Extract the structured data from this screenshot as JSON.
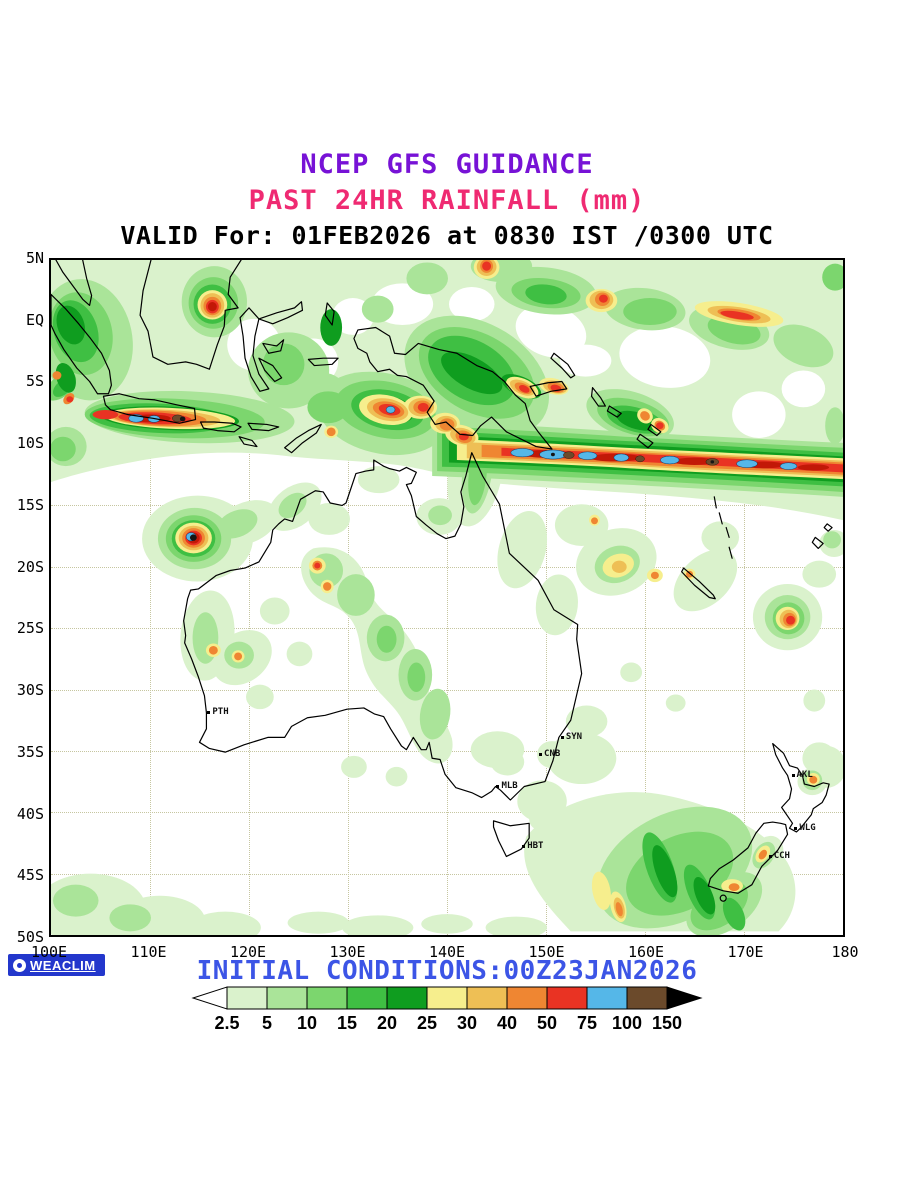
{
  "header": {
    "line1": "NCEP GFS GUIDANCE",
    "line2": "PAST 24HR RAINFALL (mm)",
    "line3": "VALID For: 01FEB2026 at 0830 IST /0300 UTC"
  },
  "axes": {
    "lat": [
      "5N",
      "EQ",
      "5S",
      "10S",
      "15S",
      "20S",
      "25S",
      "30S",
      "35S",
      "40S",
      "45S",
      "50S"
    ],
    "lon": [
      "100E",
      "110E",
      "120E",
      "130E",
      "140E",
      "150E",
      "160E",
      "170E",
      "180"
    ]
  },
  "cities": [
    {
      "code": "PTH",
      "lon": 116.0,
      "lat": -31.7
    },
    {
      "code": "SYN",
      "lon": 151.7,
      "lat": -33.7
    },
    {
      "code": "CNB",
      "lon": 149.5,
      "lat": -35.1
    },
    {
      "code": "MLB",
      "lon": 145.2,
      "lat": -37.7
    },
    {
      "code": "HBT",
      "lon": 147.8,
      "lat": -42.6
    },
    {
      "code": "AKL",
      "lon": 175.0,
      "lat": -36.8
    },
    {
      "code": "WLG",
      "lon": 175.3,
      "lat": -41.1
    },
    {
      "code": "CCH",
      "lon": 172.7,
      "lat": -43.4
    }
  ],
  "footer": {
    "initial_conditions": "INITIAL CONDITIONS:00Z23JAN2026",
    "brand": "WEACLIM"
  },
  "legend": {
    "values": [
      "2.5",
      "5",
      "10",
      "15",
      "20",
      "25",
      "30",
      "40",
      "50",
      "75",
      "100",
      "150"
    ],
    "colors": [
      "#daf2cc",
      "#aae499",
      "#7cd66e",
      "#3fbf43",
      "#0f9d1f",
      "#f6ee8d",
      "#eebf55",
      "#ef8632",
      "#e93323",
      "#55b7e8",
      "#6b4a2b"
    ],
    "left_arrow_color": "#ffffff",
    "right_arrow_color": "#000000"
  },
  "colors": {
    "title": "#7712d6",
    "subtitle": "#ef2a72",
    "initial_conditions": "#3c55e6",
    "grid": "#c6c6a0"
  }
}
